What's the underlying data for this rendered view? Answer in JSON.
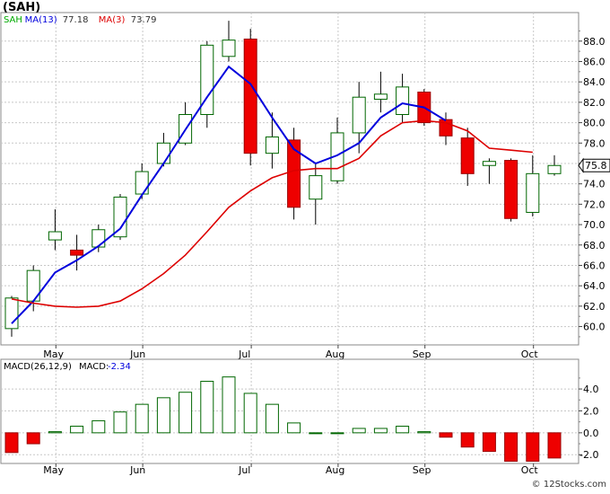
{
  "chart_data": [
    {
      "type": "candlestick",
      "title": "(SAH)",
      "legend": [
        {
          "label": "SAH",
          "value": "",
          "color": "#00aa00"
        },
        {
          "label": "MA(13)",
          "value": "77.18",
          "color": "#0000dd"
        },
        {
          "label": "MA(3)",
          "value": "73.79",
          "color": "#dd0000"
        }
      ],
      "x_labels": [
        "May",
        "Jun",
        "Jul",
        "Aug",
        "Sep",
        "Oct"
      ],
      "x_label_positions": [
        1.5,
        5.5,
        10.5,
        14.5,
        18.5,
        23.5
      ],
      "yticks": [
        60.0,
        62.0,
        64.0,
        66.0,
        68.0,
        70.0,
        72.0,
        74.0,
        76.0,
        78.0,
        80.0,
        82.0,
        84.0,
        86.0,
        88.0
      ],
      "ylim": [
        58.2,
        90.8
      ],
      "last_price": "75.8",
      "grid": true,
      "candles": [
        {
          "o": 59.8,
          "h": 63.0,
          "l": 59.0,
          "c": 62.8
        },
        {
          "o": 62.5,
          "h": 66.0,
          "l": 61.5,
          "c": 65.5
        },
        {
          "o": 68.5,
          "h": 71.5,
          "l": 67.5,
          "c": 69.3
        },
        {
          "o": 67.5,
          "h": 69.0,
          "l": 65.5,
          "c": 67.0
        },
        {
          "o": 67.8,
          "h": 70.0,
          "l": 67.3,
          "c": 69.5
        },
        {
          "o": 68.8,
          "h": 73.0,
          "l": 68.5,
          "c": 72.7
        },
        {
          "o": 73.0,
          "h": 76.0,
          "l": 72.5,
          "c": 75.2
        },
        {
          "o": 76.0,
          "h": 79.0,
          "l": 75.7,
          "c": 78.0
        },
        {
          "o": 78.0,
          "h": 82.0,
          "l": 77.8,
          "c": 80.8
        },
        {
          "o": 80.8,
          "h": 88.0,
          "l": 79.5,
          "c": 87.6
        },
        {
          "o": 86.5,
          "h": 90.0,
          "l": 86.0,
          "c": 88.1
        },
        {
          "o": 88.2,
          "h": 89.2,
          "l": 75.8,
          "c": 77.0
        },
        {
          "o": 77.0,
          "h": 81.0,
          "l": 75.5,
          "c": 78.6
        },
        {
          "o": 78.3,
          "h": 79.5,
          "l": 70.5,
          "c": 71.7
        },
        {
          "o": 72.5,
          "h": 76.0,
          "l": 70.0,
          "c": 74.8
        },
        {
          "o": 74.3,
          "h": 80.5,
          "l": 74.0,
          "c": 79.0
        },
        {
          "o": 79.0,
          "h": 84.0,
          "l": 77.0,
          "c": 82.5
        },
        {
          "o": 82.3,
          "h": 85.0,
          "l": 81.0,
          "c": 82.8
        },
        {
          "o": 80.8,
          "h": 84.8,
          "l": 80.0,
          "c": 83.5
        },
        {
          "o": 83.0,
          "h": 83.3,
          "l": 79.7,
          "c": 80.0
        },
        {
          "o": 80.3,
          "h": 81.0,
          "l": 77.8,
          "c": 78.7
        },
        {
          "o": 78.5,
          "h": 79.5,
          "l": 73.8,
          "c": 75.0
        },
        {
          "o": 75.8,
          "h": 76.5,
          "l": 74.0,
          "c": 76.2
        },
        {
          "o": 76.3,
          "h": 76.5,
          "l": 70.3,
          "c": 70.6
        },
        {
          "o": 71.2,
          "h": 76.8,
          "l": 70.8,
          "c": 75.0
        },
        {
          "o": 75.0,
          "h": 76.8,
          "l": 74.8,
          "c": 75.8
        }
      ],
      "series": [
        {
          "name": "MA(13)",
          "color": "#0000dd",
          "start": 0,
          "values": [
            60.3,
            62.5,
            65.3,
            66.5,
            67.9,
            69.6,
            72.9,
            76.0,
            79.3,
            82.5,
            85.5,
            83.8,
            80.5,
            77.4,
            76.0,
            76.8,
            78.0,
            80.5,
            81.9,
            81.5,
            80.2
          ]
        },
        {
          "name": "MA(3)",
          "color": "#dd0000",
          "start": 0,
          "values": [
            62.7,
            62.3,
            62.0,
            61.9,
            62.0,
            62.5,
            63.7,
            65.2,
            67.0,
            69.3,
            71.7,
            73.3,
            74.6,
            75.3,
            75.5,
            75.5,
            76.5,
            78.7,
            80.0,
            80.2,
            80.0,
            79.2,
            77.5,
            77.3,
            77.1
          ]
        }
      ]
    },
    {
      "type": "bar",
      "title": "MACD(26,12,9)",
      "legend": [
        {
          "label": "MACD(26,12,9)",
          "value": "",
          "color": "#0000dd"
        },
        {
          "label": "MACD:",
          "value": "-2.34",
          "color": "#0000dd"
        }
      ],
      "x_labels": [
        "May",
        "Jun",
        "Jul",
        "Aug",
        "Sep",
        "Oct"
      ],
      "yticks": [
        -2.0,
        0.0,
        2.0,
        4.0
      ],
      "ylim": [
        -2.8,
        5.4
      ],
      "grid": true,
      "values": [
        -1.8,
        -1.0,
        0.1,
        0.6,
        1.1,
        1.9,
        2.6,
        3.2,
        3.7,
        4.7,
        5.1,
        3.6,
        2.6,
        0.9,
        0.0,
        0.0,
        0.4,
        0.4,
        0.6,
        0.1,
        -0.4,
        -1.3,
        -1.7,
        -2.6,
        -2.6,
        -2.3
      ]
    }
  ],
  "watermark": "© 12Stocks.com"
}
